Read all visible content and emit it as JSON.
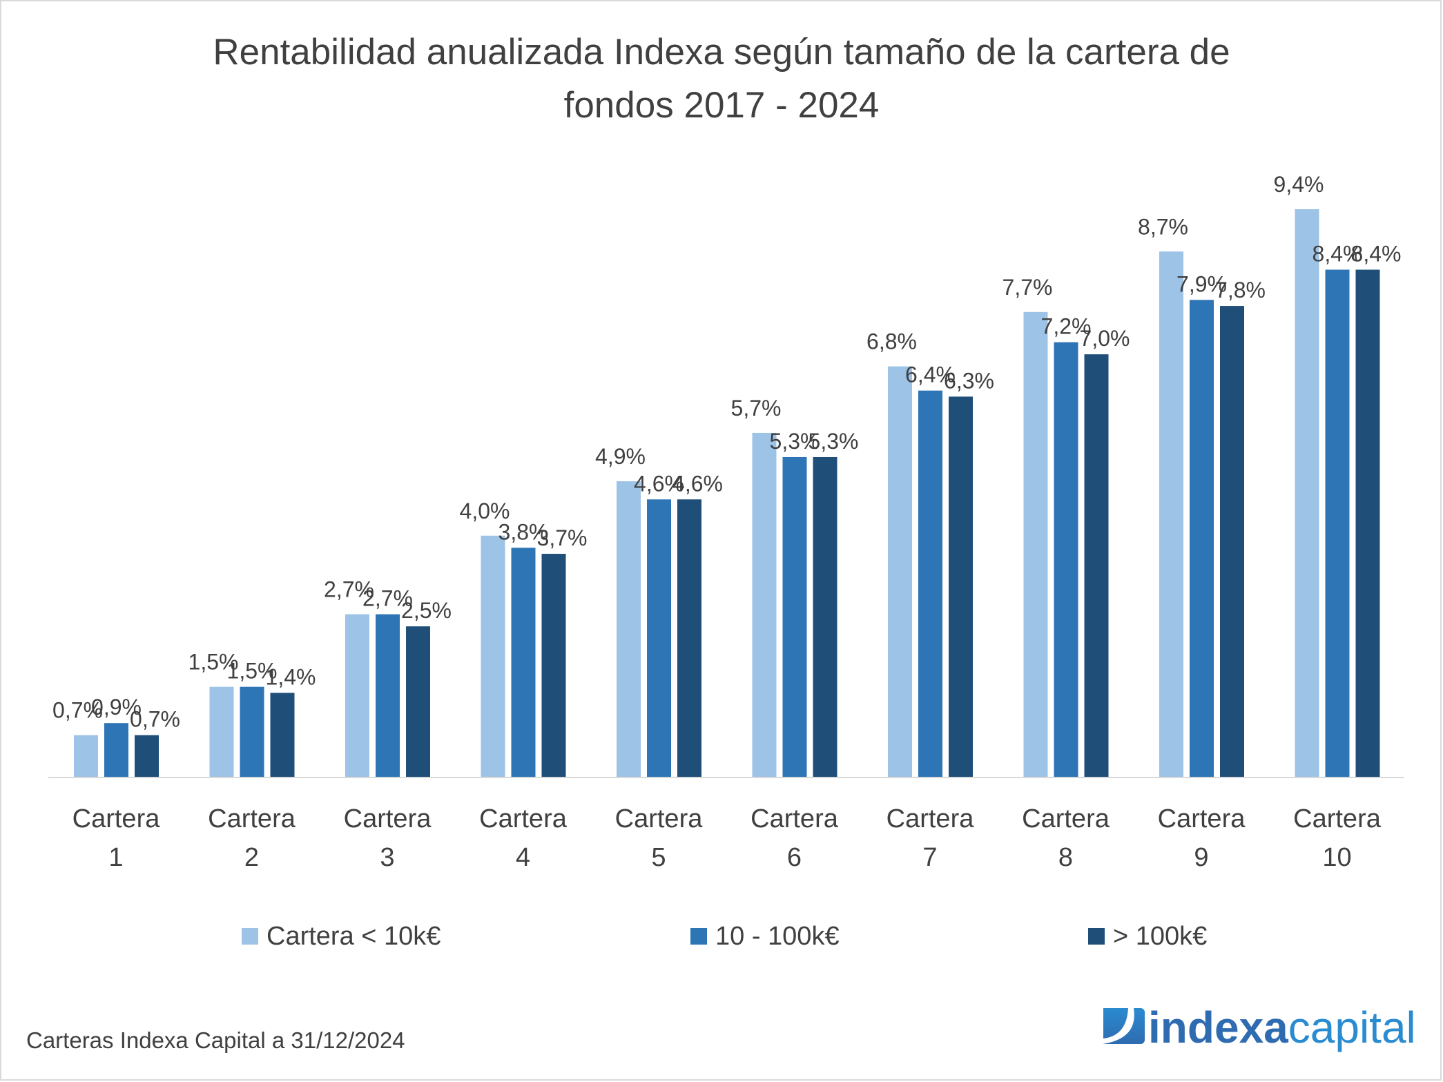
{
  "chart_data": {
    "type": "bar",
    "title": "Rentabilidad anualizada Indexa según tamaño de la cartera de fondos 2017 - 2024",
    "title_lines": [
      "Rentabilidad anualizada Indexa según tamaño de la cartera de",
      "fondos 2017 - 2024"
    ],
    "categories": [
      [
        "Cartera",
        "1"
      ],
      [
        "Cartera",
        "2"
      ],
      [
        "Cartera",
        "3"
      ],
      [
        "Cartera",
        "4"
      ],
      [
        "Cartera",
        "5"
      ],
      [
        "Cartera",
        "6"
      ],
      [
        "Cartera",
        "7"
      ],
      [
        "Cartera",
        "8"
      ],
      [
        "Cartera",
        "9"
      ],
      [
        "Cartera",
        "10"
      ]
    ],
    "series": [
      {
        "name": "Cartera < 10k€",
        "color": "#9DC3E6",
        "values": [
          0.7,
          1.5,
          2.7,
          4.0,
          4.9,
          5.7,
          6.8,
          7.7,
          8.7,
          9.4
        ],
        "labels": [
          "0,7%",
          "1,5%",
          "2,7%",
          "4,0%",
          "4,9%",
          "5,7%",
          "6,8%",
          "7,7%",
          "8,7%",
          "9,4%"
        ]
      },
      {
        "name": "10 - 100k€",
        "color": "#2E75B6",
        "values": [
          0.9,
          1.5,
          2.7,
          3.8,
          4.6,
          5.3,
          6.4,
          7.2,
          7.9,
          8.4
        ],
        "labels": [
          "0,9%",
          "1,5%",
          "2,7%",
          "3,8%",
          "4,6%",
          "5,3%",
          "6,4%",
          "7,2%",
          "7,9%",
          "8,4%"
        ]
      },
      {
        "name": "> 100k€",
        "color": "#1F4E79",
        "values": [
          0.7,
          1.4,
          2.5,
          3.7,
          4.6,
          5.3,
          6.3,
          7.0,
          7.8,
          8.4
        ],
        "labels": [
          "0,7%",
          "1,4%",
          "2,5%",
          "3,7%",
          "4,6%",
          "5,3%",
          "6,3%",
          "7,0%",
          "7,8%",
          "8,4%"
        ]
      }
    ],
    "ylim": [
      0,
      9.4
    ],
    "grid": false,
    "legend": "bottom",
    "xlabel": "",
    "ylabel": ""
  },
  "footer": "Carteras Indexa Capital a 31/12/2024",
  "logo": {
    "text_bold": "indexa",
    "text_light": "capital",
    "color_dark": "#2F6BB0",
    "color_light": "#2A8BD0"
  }
}
